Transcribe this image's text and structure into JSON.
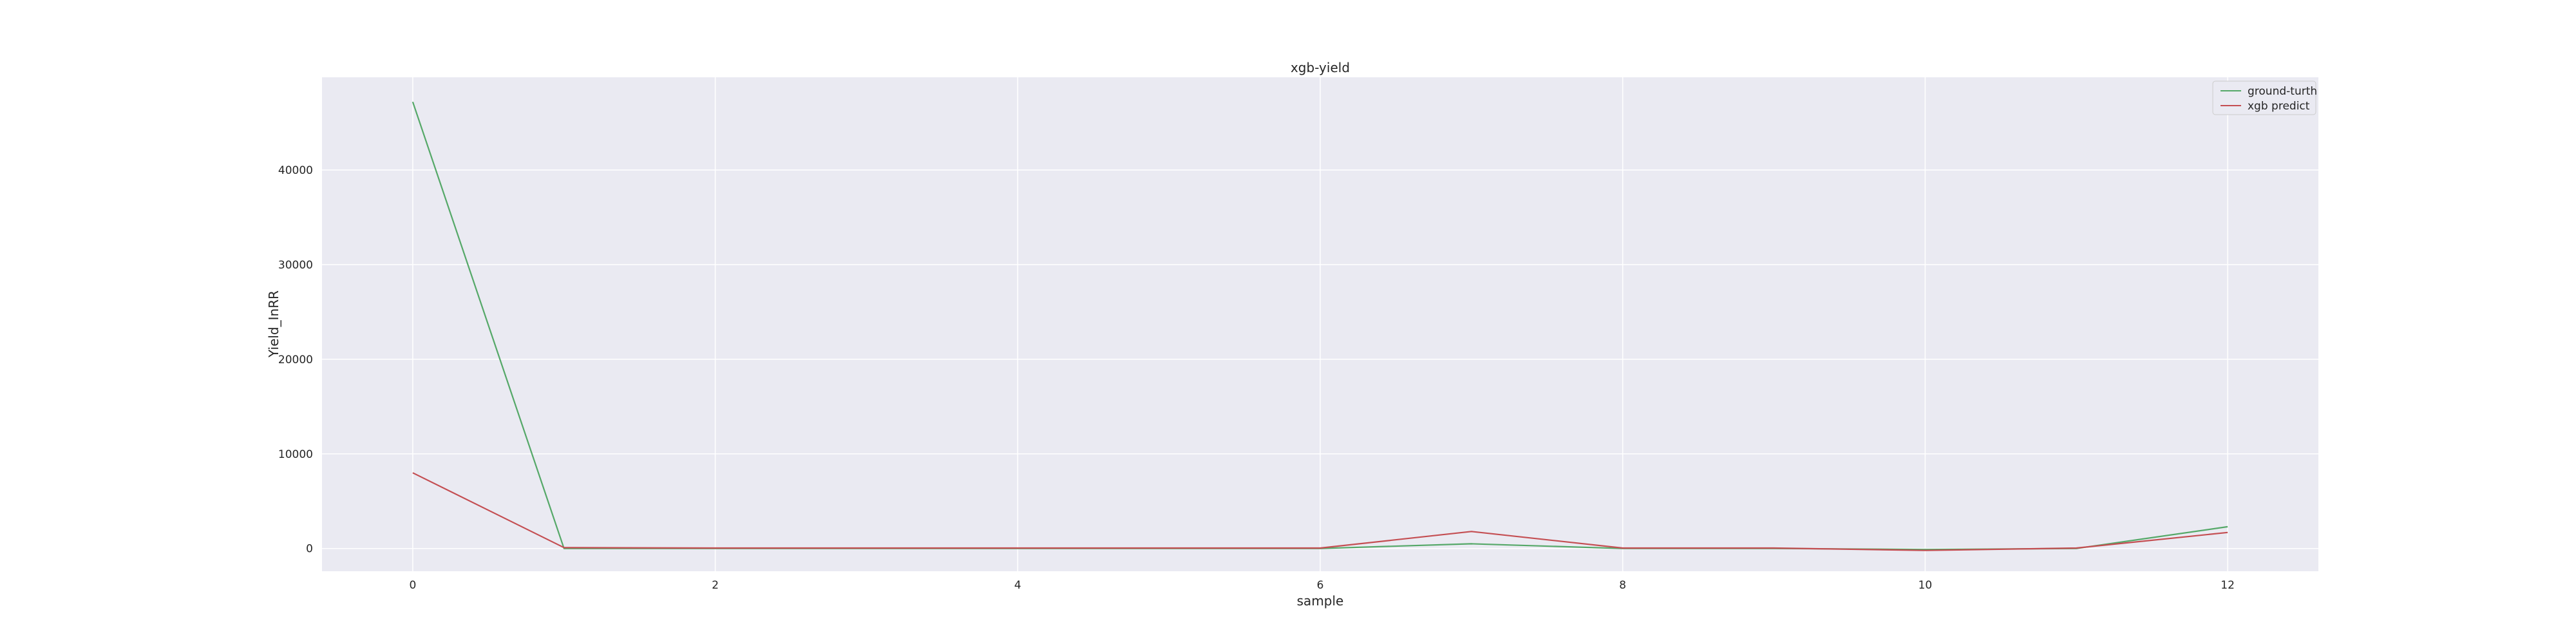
{
  "chart_data": {
    "type": "line",
    "title": "xgb-yield",
    "xlabel": "sample",
    "ylabel": "Yield_InRR",
    "x": [
      0,
      1,
      2,
      3,
      4,
      5,
      6,
      7,
      8,
      9,
      10,
      11,
      12
    ],
    "xlim": [
      -0.6,
      12.6
    ],
    "ylim": [
      -2400,
      49800
    ],
    "xticks": [
      0,
      2,
      4,
      6,
      8,
      10,
      12
    ],
    "yticks": [
      0,
      10000,
      20000,
      30000,
      40000
    ],
    "grid": true,
    "legend_position": "top-right",
    "background": "#eaeaf2",
    "series": [
      {
        "name": "ground-turth",
        "color": "#55a868",
        "values": [
          47200,
          0,
          0,
          0,
          0,
          0,
          0,
          500,
          0,
          0,
          -100,
          0,
          2300
        ]
      },
      {
        "name": "xgb predict",
        "color": "#c44e52",
        "values": [
          8000,
          100,
          50,
          50,
          50,
          50,
          50,
          1800,
          50,
          50,
          -200,
          50,
          1700
        ]
      }
    ]
  }
}
